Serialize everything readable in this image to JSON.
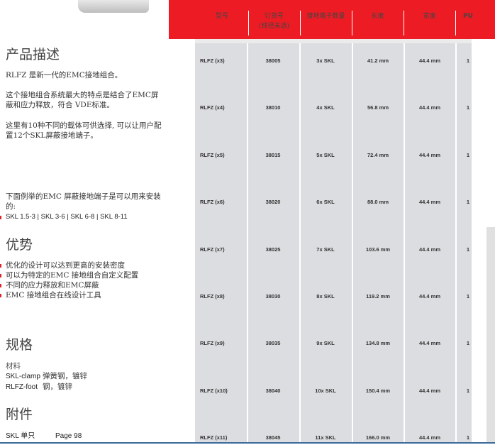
{
  "description": {
    "title": "产品描述",
    "p1": "RLFZ 是新一代的EMC接地组合。",
    "p2": "这个接地组合系统最大的特点是结合了EMC屏蔽和应力释放，符合 VDE标准。",
    "p3": "这里有10种不同的载体可供选择, 可以让用户配置12个SKL屏蔽接地端子。",
    "p4": "下面例举的EMC 屏蔽接地端子是可以用来安装的:",
    "p5": "SKL 1.5-3 | SKL 3-6 | SKL 6-8 | SKL 8-11"
  },
  "advantages": {
    "title": "优势",
    "items": [
      "优化的设计可以达到更高的安装密度",
      "可以为特定的EMC 接地组合自定义配置",
      "不同的应力释放和EMC屏蔽",
      "EMC 接地组合在线设计工具"
    ]
  },
  "specs": {
    "title": "规格",
    "label": "材料",
    "rows": [
      {
        "name": "SKL-clamp",
        "value": "弹簧钢，镀锌"
      },
      {
        "name": "RLFZ-foot",
        "value": "钢，镀锌"
      }
    ]
  },
  "accessories": {
    "title": "附件",
    "item": "SKL 单只",
    "page": "Page 98"
  },
  "table": {
    "header_color": "#ed1c24",
    "headers": [
      "型号",
      "订货号\n(线径未选)",
      "接地端子数量",
      "长度",
      "宽度",
      "PU"
    ],
    "rows": [
      [
        "RLFZ (x3)",
        "38005",
        "3x  SKL",
        "41.2 mm",
        "44.4 mm",
        "1"
      ],
      [
        "RLFZ (x4)",
        "38010",
        "4x  SKL",
        "56.8 mm",
        "44.4 mm",
        "1"
      ],
      [
        "RLFZ (x5)",
        "38015",
        "5x  SKL",
        "72.4 mm",
        "44.4 mm",
        "1"
      ],
      [
        "RLFZ (x6)",
        "38020",
        "6x  SKL",
        "88.0 mm",
        "44.4 mm",
        "1"
      ],
      [
        "RLFZ (x7)",
        "38025",
        "7x  SKL",
        "103.6 mm",
        "44.4 mm",
        "1"
      ],
      [
        "RLFZ (x8)",
        "38030",
        "8x  SKL",
        "119.2 mm",
        "44.4 mm",
        "1"
      ],
      [
        "RLFZ (x9)",
        "38035",
        "9x  SKL",
        "134.8 mm",
        "44.4 mm",
        "1"
      ],
      [
        "RLFZ (x10)",
        "38040",
        "10x  SKL",
        "150.4 mm",
        "44.4 mm",
        "1"
      ],
      [
        "RLFZ (x11)",
        "38045",
        "11x  SKL",
        "166.0 mm",
        "44.4 mm",
        "1"
      ]
    ]
  }
}
